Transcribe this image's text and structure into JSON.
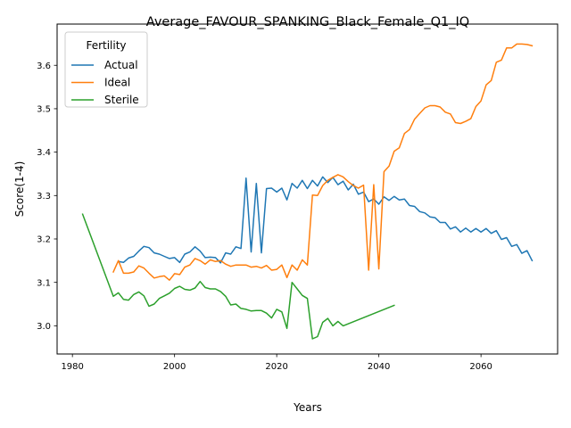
{
  "chart_data": {
    "type": "line",
    "title": "Average_FAVOUR_SPANKING_Black_Female_Q1_IQ",
    "xlabel": "Years",
    "ylabel": "Score(1-4)",
    "xlim": [
      1977,
      2075
    ],
    "ylim": [
      2.935,
      3.695
    ],
    "xticks": [
      1980,
      2000,
      2020,
      2040,
      2060
    ],
    "yticks": [
      3.0,
      3.1,
      3.2,
      3.3,
      3.4,
      3.5,
      3.6
    ],
    "xtick_labels": [
      "1980",
      "2000",
      "2020",
      "2040",
      "2060"
    ],
    "ytick_labels": [
      "3.0",
      "3.1",
      "3.2",
      "3.3",
      "3.4",
      "3.5",
      "3.6"
    ],
    "grid": false,
    "legend": {
      "title": "Fertility",
      "position": "top-left"
    },
    "series": [
      {
        "name": "Actual",
        "color": "#1f77b4",
        "x": [
          1989,
          1990,
          1991,
          1992,
          1993,
          1994,
          1995,
          1996,
          1997,
          1998,
          1999,
          2000,
          2001,
          2002,
          2003,
          2004,
          2005,
          2006,
          2007,
          2008,
          2009,
          2010,
          2011,
          2012,
          2013,
          2014,
          2015,
          2016,
          2017,
          2018,
          2019,
          2020,
          2021,
          2022,
          2023,
          2024,
          2025,
          2026,
          2027,
          2028,
          2029,
          2030,
          2031,
          2032,
          2033,
          2034,
          2035,
          2036,
          2037,
          2038,
          2039,
          2040,
          2041,
          2042,
          2043,
          2044,
          2045,
          2046,
          2047,
          2048,
          2049,
          2050,
          2051,
          2052,
          2053,
          2054,
          2055,
          2056,
          2057,
          2058,
          2059,
          2060,
          2061,
          2062,
          2063,
          2064,
          2065,
          2066,
          2067,
          2068,
          2069,
          2070
        ],
        "y": [
          3.148,
          3.146,
          3.156,
          3.16,
          3.172,
          3.183,
          3.18,
          3.168,
          3.165,
          3.16,
          3.155,
          3.157,
          3.146,
          3.165,
          3.17,
          3.182,
          3.172,
          3.157,
          3.158,
          3.157,
          3.145,
          3.168,
          3.165,
          3.182,
          3.178,
          3.34,
          3.17,
          3.328,
          3.168,
          3.316,
          3.317,
          3.308,
          3.317,
          3.29,
          3.328,
          3.317,
          3.335,
          3.316,
          3.335,
          3.322,
          3.343,
          3.33,
          3.342,
          3.325,
          3.333,
          3.313,
          3.326,
          3.303,
          3.308,
          3.286,
          3.292,
          3.28,
          3.297,
          3.289,
          3.298,
          3.29,
          3.292,
          3.277,
          3.275,
          3.263,
          3.26,
          3.251,
          3.249,
          3.238,
          3.238,
          3.223,
          3.228,
          3.216,
          3.225,
          3.216,
          3.224,
          3.216,
          3.224,
          3.213,
          3.219,
          3.199,
          3.203,
          3.183,
          3.187,
          3.167,
          3.173,
          3.15
        ]
      },
      {
        "name": "Ideal",
        "color": "#ff7f0e",
        "x": [
          1988,
          1989,
          1990,
          1991,
          1992,
          1993,
          1994,
          1995,
          1996,
          1997,
          1998,
          1999,
          2000,
          2001,
          2002,
          2003,
          2004,
          2005,
          2006,
          2007,
          2008,
          2009,
          2010,
          2011,
          2012,
          2013,
          2014,
          2015,
          2016,
          2017,
          2018,
          2019,
          2020,
          2021,
          2022,
          2023,
          2024,
          2025,
          2026,
          2027,
          2028,
          2029,
          2030,
          2031,
          2032,
          2033,
          2034,
          2035,
          2036,
          2037,
          2038,
          2039,
          2040,
          2041,
          2042,
          2043,
          2044,
          2045,
          2046,
          2047,
          2048,
          2049,
          2050,
          2051,
          2052,
          2053,
          2054,
          2055,
          2056,
          2057,
          2058,
          2059,
          2060,
          2061,
          2062,
          2063,
          2064,
          2065,
          2066,
          2067,
          2068,
          2069,
          2070
        ],
        "y": [
          3.124,
          3.15,
          3.121,
          3.121,
          3.124,
          3.138,
          3.133,
          3.121,
          3.11,
          3.113,
          3.115,
          3.105,
          3.12,
          3.118,
          3.135,
          3.14,
          3.155,
          3.15,
          3.142,
          3.152,
          3.148,
          3.15,
          3.142,
          3.137,
          3.14,
          3.14,
          3.14,
          3.135,
          3.137,
          3.133,
          3.139,
          3.128,
          3.13,
          3.14,
          3.111,
          3.14,
          3.128,
          3.152,
          3.14,
          3.301,
          3.3,
          3.323,
          3.335,
          3.342,
          3.348,
          3.343,
          3.332,
          3.323,
          3.317,
          3.324,
          3.128,
          3.325,
          3.131,
          3.355,
          3.368,
          3.402,
          3.41,
          3.443,
          3.452,
          3.476,
          3.489,
          3.502,
          3.507,
          3.507,
          3.504,
          3.492,
          3.488,
          3.468,
          3.466,
          3.471,
          3.477,
          3.505,
          3.518,
          3.555,
          3.565,
          3.607,
          3.612,
          3.64,
          3.64,
          3.649,
          3.649,
          3.648,
          3.645
        ]
      },
      {
        "name": "Sterile",
        "color": "#2ca02c",
        "x": [
          1982,
          1988,
          1989,
          1990,
          1991,
          1992,
          1993,
          1994,
          1995,
          1996,
          1997,
          1998,
          1999,
          2000,
          2001,
          2002,
          2003,
          2004,
          2005,
          2006,
          2007,
          2008,
          2009,
          2010,
          2011,
          2012,
          2013,
          2014,
          2015,
          2016,
          2017,
          2018,
          2019,
          2020,
          2021,
          2022,
          2023,
          2024,
          2025,
          2026,
          2027,
          2028,
          2029,
          2030,
          2031,
          2032,
          2033,
          2043
        ],
        "y": [
          3.257,
          3.068,
          3.076,
          3.061,
          3.059,
          3.072,
          3.078,
          3.069,
          3.045,
          3.05,
          3.063,
          3.069,
          3.075,
          3.086,
          3.091,
          3.084,
          3.082,
          3.087,
          3.102,
          3.088,
          3.085,
          3.085,
          3.079,
          3.068,
          3.048,
          3.05,
          3.04,
          3.038,
          3.034,
          3.035,
          3.035,
          3.029,
          3.018,
          3.038,
          3.032,
          2.994,
          3.1,
          3.085,
          3.07,
          3.063,
          2.97,
          2.975,
          3.008,
          3.017,
          3.0,
          3.01,
          3.0,
          3.047
        ]
      }
    ]
  }
}
